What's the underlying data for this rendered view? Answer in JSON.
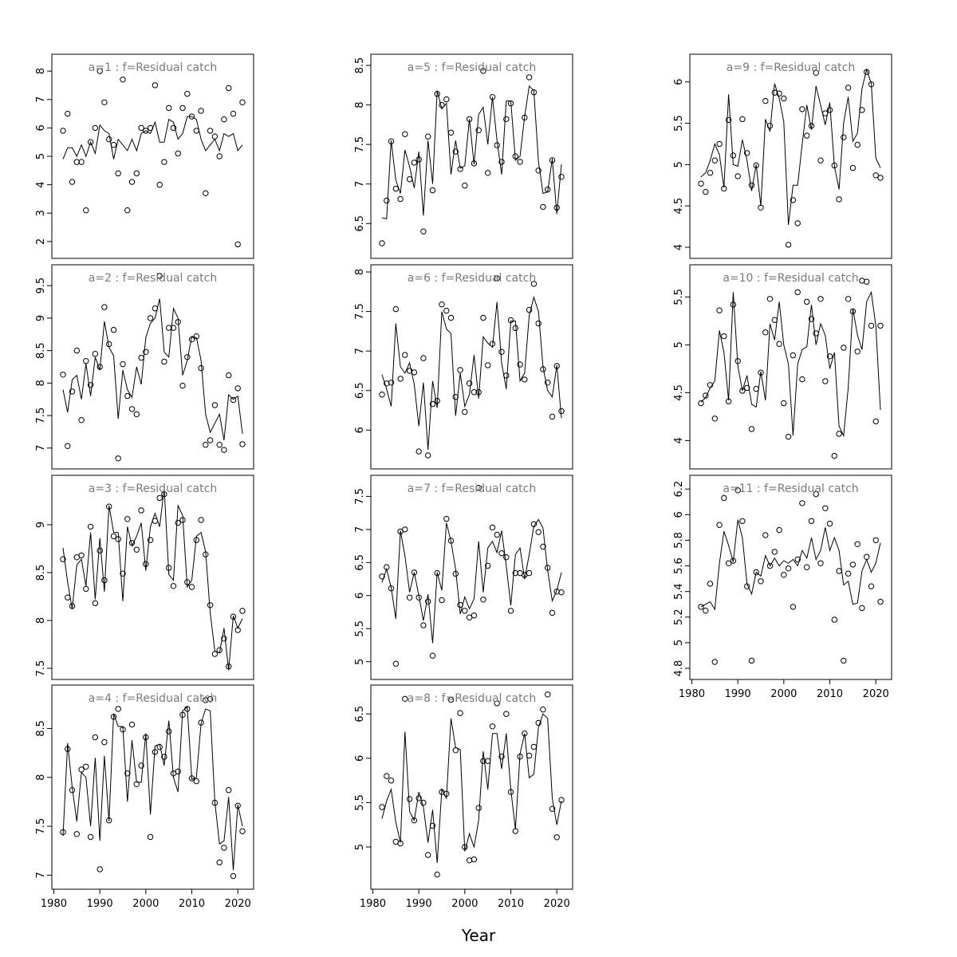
{
  "chart_data": {
    "type": "line",
    "panel_layout": "3 columns: panels a=1..a=4 in column 1, a=5..a=8 in column 2, a=9..a=11 in column 3",
    "xlabel": "Year",
    "xlim": [
      1982,
      2021
    ],
    "x_ticks": [
      1980,
      1990,
      2000,
      2010,
      2020
    ],
    "x": [
      1982,
      1983,
      1984,
      1985,
      1986,
      1987,
      1988,
      1989,
      1990,
      1991,
      1992,
      1993,
      1994,
      1995,
      1996,
      1997,
      1998,
      1999,
      2000,
      2001,
      2002,
      2003,
      2004,
      2005,
      2006,
      2007,
      2008,
      2009,
      2010,
      2011,
      2012,
      2013,
      2014,
      2015,
      2016,
      2017,
      2018,
      2019,
      2020,
      2021
    ],
    "series_styles": {
      "observed": "open circles",
      "fitted": "line"
    },
    "panels": [
      {
        "title": "a=1  :  f=Residual catch",
        "ylim": [
          1.8,
          8.2
        ],
        "yticks": [
          2,
          3,
          4,
          5,
          6,
          7,
          8
        ],
        "observed": [
          5.9,
          6.5,
          4.1,
          4.8,
          4.8,
          3.1,
          5.5,
          6.0,
          8.0,
          6.9,
          5.6,
          5.4,
          4.4,
          7.7,
          3.1,
          4.1,
          4.4,
          6.0,
          5.9,
          6.0,
          7.5,
          4.0,
          4.8,
          6.7,
          6.0,
          5.1,
          6.7,
          7.2,
          6.4,
          5.9,
          6.6,
          3.7,
          5.9,
          5.7,
          5.0,
          6.3,
          7.4,
          6.5,
          1.9,
          6.9
        ],
        "fitted": [
          4.9,
          5.3,
          5.3,
          5.0,
          5.4,
          5.0,
          5.5,
          5.1,
          6.1,
          5.9,
          5.8,
          4.9,
          5.6,
          5.4,
          5.2,
          5.6,
          5.2,
          5.8,
          5.9,
          5.8,
          6.2,
          5.5,
          5.5,
          6.3,
          6.2,
          5.6,
          5.8,
          6.4,
          6.4,
          6.3,
          5.6,
          5.2,
          5.4,
          5.6,
          5.2,
          5.8,
          5.7,
          5.8,
          5.2,
          5.4
        ]
      },
      {
        "title": "a=2  :  f=Residual catch",
        "ylim": [
          6.85,
          9.65
        ],
        "yticks": [
          7.0,
          7.5,
          8.0,
          8.5,
          9.0,
          9.5
        ],
        "observed": [
          8.13,
          7.03,
          7.87,
          8.5,
          7.43,
          8.34,
          7.97,
          8.45,
          8.25,
          9.17,
          8.6,
          8.82,
          6.84,
          8.29,
          7.8,
          7.6,
          7.52,
          8.39,
          8.48,
          9.0,
          9.15,
          9.65,
          8.33,
          8.85,
          8.85,
          8.94,
          7.96,
          8.4,
          8.67,
          8.72,
          8.23,
          7.05,
          7.12,
          7.66,
          7.05,
          6.97,
          8.12,
          7.74,
          7.92,
          7.06
        ],
        "fitted": [
          7.9,
          7.55,
          8.05,
          8.12,
          7.75,
          8.3,
          7.8,
          8.4,
          8.2,
          8.95,
          8.55,
          8.42,
          7.45,
          8.2,
          7.9,
          7.78,
          8.25,
          7.98,
          8.7,
          8.92,
          9.0,
          9.3,
          8.48,
          8.4,
          9.15,
          9.0,
          8.12,
          8.35,
          8.72,
          8.7,
          8.35,
          7.52,
          7.24,
          7.38,
          7.52,
          7.12,
          7.82,
          7.75,
          7.8,
          7.22
        ]
      },
      {
        "title": "a=3  :  f=Residual catch",
        "ylim": [
          7.5,
          9.4
        ],
        "yticks": [
          7.5,
          8.0,
          8.5,
          9.0
        ],
        "observed": [
          8.64,
          8.24,
          8.15,
          8.66,
          8.68,
          8.33,
          8.98,
          8.18,
          8.73,
          8.42,
          9.19,
          8.88,
          8.85,
          8.49,
          9.06,
          8.81,
          8.74,
          9.15,
          8.59,
          8.84,
          9.04,
          9.28,
          9.32,
          8.55,
          8.36,
          9.02,
          9.05,
          8.4,
          8.35,
          8.84,
          9.05,
          8.69,
          8.16,
          7.65,
          7.69,
          7.81,
          7.52,
          8.04,
          7.9,
          8.1
        ],
        "fitted": [
          8.76,
          8.4,
          8.12,
          8.58,
          8.64,
          8.36,
          8.92,
          8.22,
          8.86,
          8.3,
          9.2,
          8.92,
          8.92,
          8.2,
          8.98,
          8.78,
          8.88,
          9.02,
          8.52,
          8.98,
          9.12,
          8.98,
          9.38,
          8.48,
          8.42,
          9.2,
          9.1,
          8.35,
          8.42,
          8.88,
          8.92,
          8.72,
          8.08,
          7.68,
          7.66,
          7.92,
          7.48,
          8.05,
          7.92,
          8.02
        ]
      },
      {
        "title": "a=4  :  f=Residual catch",
        "ylim": [
          6.97,
          8.83
        ],
        "yticks": [
          7.0,
          7.5,
          8.0,
          8.5
        ],
        "observed": [
          7.44,
          8.29,
          7.87,
          7.42,
          8.08,
          8.11,
          7.39,
          8.41,
          7.06,
          8.36,
          7.56,
          8.62,
          8.7,
          8.49,
          8.04,
          8.54,
          7.93,
          8.12,
          8.41,
          7.39,
          8.26,
          8.31,
          8.21,
          8.47,
          8.04,
          8.06,
          8.64,
          8.7,
          7.99,
          7.96,
          8.56,
          8.79,
          8.8,
          7.74,
          7.13,
          7.28,
          7.87,
          6.99,
          7.71,
          7.45
        ],
        "fitted": [
          7.4,
          8.35,
          7.9,
          7.55,
          8.05,
          8.0,
          7.5,
          8.2,
          7.35,
          8.22,
          7.55,
          8.65,
          8.52,
          8.52,
          7.75,
          8.38,
          7.95,
          7.95,
          8.45,
          7.62,
          8.32,
          8.34,
          8.12,
          8.58,
          8.0,
          7.85,
          8.68,
          8.72,
          7.98,
          8.0,
          8.55,
          8.7,
          8.68,
          7.75,
          7.32,
          7.35,
          7.8,
          7.05,
          7.72,
          7.5
        ]
      },
      {
        "title": "a=5  :  f=Residual catch",
        "ylim": [
          6.2,
          8.5
        ],
        "yticks": [
          6.5,
          7.0,
          7.5,
          8.0,
          8.5
        ],
        "observed": [
          6.25,
          6.79,
          7.54,
          6.94,
          6.81,
          7.63,
          7.06,
          7.27,
          7.31,
          6.4,
          7.6,
          6.92,
          8.14,
          8.0,
          8.07,
          7.65,
          7.41,
          7.19,
          6.98,
          7.82,
          7.26,
          7.68,
          8.43,
          7.14,
          8.1,
          7.49,
          7.28,
          7.82,
          8.02,
          7.35,
          7.28,
          7.84,
          8.35,
          8.16,
          7.17,
          6.71,
          6.93,
          7.3,
          6.7,
          7.09
        ],
        "fitted": [
          6.57,
          6.56,
          7.55,
          7.05,
          6.88,
          7.43,
          7.22,
          6.95,
          7.41,
          6.6,
          7.55,
          7.0,
          8.18,
          7.95,
          8.02,
          7.12,
          7.55,
          7.2,
          7.23,
          7.82,
          7.25,
          7.88,
          7.97,
          7.5,
          8.1,
          7.55,
          7.12,
          8.05,
          8.05,
          7.3,
          7.35,
          7.85,
          8.24,
          8.18,
          7.28,
          6.88,
          6.9,
          7.32,
          6.62,
          7.25
        ]
      },
      {
        "title": "a=6  :  f=Residual catch",
        "ylim": [
          5.65,
          7.95
        ],
        "yticks": [
          6.0,
          6.5,
          7.0,
          7.5,
          8.0
        ],
        "observed": [
          6.45,
          6.59,
          6.6,
          7.53,
          6.65,
          6.95,
          6.75,
          6.73,
          5.73,
          6.91,
          5.68,
          6.33,
          6.37,
          7.59,
          7.51,
          7.42,
          6.42,
          6.76,
          6.23,
          6.59,
          6.48,
          6.48,
          7.42,
          6.82,
          7.09,
          7.92,
          6.99,
          6.69,
          7.39,
          7.29,
          6.83,
          6.64,
          7.52,
          7.85,
          7.35,
          6.77,
          6.6,
          6.17,
          6.81,
          6.24
        ],
        "fitted": [
          6.7,
          6.52,
          6.3,
          7.35,
          6.8,
          6.72,
          6.85,
          6.58,
          6.05,
          6.6,
          5.75,
          6.62,
          6.28,
          7.5,
          7.28,
          7.22,
          6.18,
          6.72,
          6.3,
          6.45,
          6.95,
          6.4,
          7.18,
          7.1,
          7.05,
          7.62,
          6.85,
          6.52,
          7.38,
          7.38,
          6.62,
          6.72,
          7.45,
          7.68,
          7.5,
          6.8,
          6.5,
          6.42,
          6.82,
          6.15
        ]
      },
      {
        "title": "a=7  :  f=Residual catch",
        "ylim": [
          4.9,
          7.65
        ],
        "yticks": [
          5.0,
          5.5,
          6.0,
          6.5,
          7.0,
          7.5
        ],
        "observed": [
          6.29,
          6.43,
          6.11,
          4.97,
          6.97,
          7.0,
          5.97,
          6.35,
          5.97,
          5.55,
          5.91,
          5.09,
          6.34,
          5.93,
          7.16,
          6.83,
          6.33,
          5.86,
          5.77,
          5.67,
          5.7,
          7.63,
          5.94,
          6.45,
          7.03,
          6.92,
          6.64,
          6.58,
          5.77,
          6.34,
          6.34,
          6.31,
          6.34,
          7.08,
          6.96,
          6.74,
          6.42,
          5.74,
          6.06,
          6.05
        ],
        "fitted": [
          6.2,
          6.4,
          6.12,
          5.65,
          6.98,
          6.6,
          6.05,
          6.35,
          6.0,
          5.62,
          6.02,
          5.28,
          6.35,
          6.08,
          7.1,
          6.82,
          6.4,
          5.72,
          5.98,
          5.8,
          5.95,
          6.82,
          6.05,
          6.72,
          6.82,
          6.65,
          6.98,
          6.45,
          5.85,
          6.62,
          6.72,
          6.25,
          6.62,
          7.05,
          7.15,
          7.02,
          6.38,
          5.92,
          6.08,
          6.35
        ]
      },
      {
        "title": "a=8  :  f=Residual catch",
        "ylim": [
          4.65,
          6.7
        ],
        "yticks": [
          5.0,
          5.5,
          6.0,
          6.5
        ],
        "observed": [
          5.45,
          5.8,
          5.75,
          5.06,
          5.04,
          6.67,
          5.54,
          5.3,
          5.55,
          5.5,
          4.91,
          5.24,
          4.69,
          5.62,
          5.6,
          6.66,
          6.09,
          6.51,
          5.0,
          4.85,
          4.86,
          5.44,
          5.97,
          5.97,
          6.36,
          6.62,
          6.02,
          6.5,
          5.62,
          5.18,
          6.02,
          6.28,
          6.03,
          6.13,
          6.4,
          6.55,
          6.72,
          5.43,
          5.11,
          5.53
        ],
        "fitted": [
          5.32,
          5.52,
          5.65,
          5.28,
          5.05,
          6.3,
          5.4,
          5.3,
          5.62,
          5.45,
          5.05,
          5.42,
          4.82,
          5.65,
          5.55,
          6.45,
          6.12,
          6.1,
          4.95,
          5.15,
          5.0,
          5.3,
          6.08,
          5.65,
          6.28,
          6.28,
          5.88,
          6.28,
          5.65,
          5.2,
          6.05,
          6.28,
          5.78,
          5.82,
          6.35,
          6.5,
          6.45,
          5.55,
          5.25,
          5.52
        ]
      },
      {
        "title": "a=9  :  f=Residual catch",
        "ylim": [
          4.0,
          6.2
        ],
        "yticks": [
          4.0,
          4.5,
          5.0,
          5.5,
          6.0
        ],
        "observed": [
          4.77,
          4.67,
          4.9,
          5.05,
          5.25,
          4.71,
          5.54,
          5.11,
          4.86,
          5.55,
          5.14,
          4.75,
          4.99,
          4.48,
          5.77,
          5.47,
          5.87,
          5.86,
          5.8,
          4.03,
          4.57,
          4.29,
          5.67,
          5.35,
          5.47,
          6.11,
          5.05,
          5.62,
          5.66,
          4.99,
          4.58,
          5.33,
          5.93,
          4.96,
          5.24,
          5.66,
          6.12,
          5.97,
          4.87,
          4.84
        ],
        "fitted": [
          4.85,
          4.9,
          5.05,
          5.25,
          5.12,
          4.72,
          5.85,
          5.0,
          4.98,
          5.3,
          5.05,
          4.68,
          5.0,
          4.5,
          5.55,
          5.4,
          5.98,
          5.8,
          5.52,
          4.27,
          4.75,
          4.75,
          5.25,
          5.72,
          5.42,
          5.95,
          5.72,
          5.48,
          5.75,
          4.98,
          4.7,
          5.5,
          5.82,
          5.28,
          5.38,
          5.92,
          6.15,
          5.98,
          5.08,
          4.96
        ]
      },
      {
        "title": "a=10  :  f=Residual catch",
        "ylim": [
          3.82,
          5.72
        ],
        "yticks": [
          4.0,
          4.5,
          5.0,
          5.5
        ],
        "observed": [
          4.39,
          4.47,
          4.58,
          4.23,
          5.36,
          5.09,
          4.41,
          5.42,
          4.83,
          4.52,
          4.55,
          4.12,
          4.54,
          4.71,
          5.13,
          5.48,
          5.26,
          5.01,
          4.39,
          4.04,
          4.89,
          5.55,
          4.64,
          5.45,
          5.27,
          5.12,
          5.48,
          4.62,
          4.88,
          3.84,
          4.07,
          4.97,
          5.48,
          5.35,
          4.93,
          5.67,
          5.66,
          5.2,
          4.2,
          5.2
        ],
        "fitted": [
          4.4,
          4.45,
          4.55,
          4.62,
          5.15,
          4.92,
          4.42,
          5.55,
          4.78,
          4.52,
          4.68,
          4.38,
          4.35,
          4.72,
          4.42,
          5.22,
          5.05,
          5.45,
          5.0,
          4.8,
          4.05,
          4.8,
          4.95,
          4.98,
          5.42,
          5.0,
          5.22,
          5.1,
          4.75,
          4.92,
          4.15,
          4.05,
          4.55,
          5.38,
          5.1,
          4.95,
          5.45,
          5.55,
          5.2,
          4.32
        ]
      },
      {
        "title": "a=11  :  f=Residual catch",
        "ylim": [
          4.8,
          6.22
        ],
        "yticks": [
          4.8,
          5.0,
          5.2,
          5.4,
          5.6,
          5.8,
          6.0,
          6.2
        ],
        "observed": [
          5.28,
          5.25,
          5.46,
          4.85,
          5.92,
          6.13,
          5.62,
          5.64,
          6.19,
          5.95,
          5.44,
          4.86,
          5.55,
          5.48,
          5.84,
          5.6,
          5.71,
          5.88,
          5.53,
          5.58,
          5.28,
          5.65,
          6.09,
          5.59,
          5.95,
          6.16,
          5.62,
          6.05,
          5.93,
          5.18,
          5.56,
          4.86,
          5.54,
          5.61,
          5.77,
          5.27,
          5.67,
          5.44,
          5.8,
          5.32
        ],
        "fitted": [
          5.28,
          5.3,
          5.32,
          5.26,
          5.62,
          5.87,
          5.76,
          5.63,
          5.96,
          5.82,
          5.46,
          5.38,
          5.55,
          5.52,
          5.68,
          5.6,
          5.66,
          5.6,
          5.64,
          5.62,
          5.65,
          5.6,
          5.72,
          5.66,
          5.82,
          5.65,
          5.72,
          5.9,
          5.72,
          5.82,
          5.72,
          5.45,
          5.48,
          5.3,
          5.31,
          5.56,
          5.65,
          5.55,
          5.62,
          5.78
        ]
      }
    ]
  }
}
